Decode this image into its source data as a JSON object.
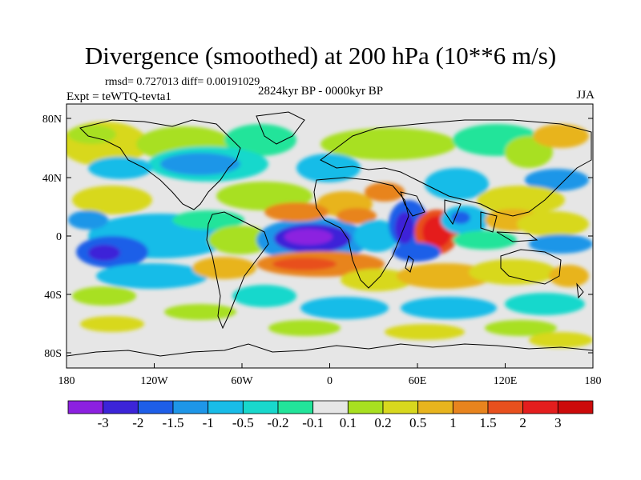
{
  "title": "Divergence (smoothed) at 200 hPa (10**6 m/s)",
  "stats_label": "rmsd= 0.727013 diff= 0.00191029",
  "experiment_label": "Expt = teWTQ-tevta1",
  "period_label": "2824kyr BP - 0000kyr BP",
  "season_label": "JJA",
  "lat_ticks": [
    "80N",
    "40N",
    "0",
    "40S",
    "80S"
  ],
  "lon_ticks": [
    "180",
    "120W",
    "60W",
    "0",
    "60E",
    "120E",
    "180"
  ],
  "colorbar": {
    "labels": [
      "-3",
      "-2",
      "-1.5",
      "-1",
      "-0.5",
      "-0.2",
      "-0.1",
      "0.1",
      "0.2",
      "0.5",
      "1",
      "1.5",
      "2",
      "3"
    ],
    "colors": [
      "#8c20e0",
      "#3c24d8",
      "#1e5ee8",
      "#1e96e8",
      "#18bce8",
      "#18d8cc",
      "#22e49a",
      "#e6e6e6",
      "#a8e020",
      "#d8d81e",
      "#e8b41e",
      "#e8841e",
      "#e8501e",
      "#e41e1e",
      "#cc0a0a"
    ]
  },
  "map_colors": {
    "ocean_neutral": "#e6e6e6",
    "coast": "#000000"
  }
}
